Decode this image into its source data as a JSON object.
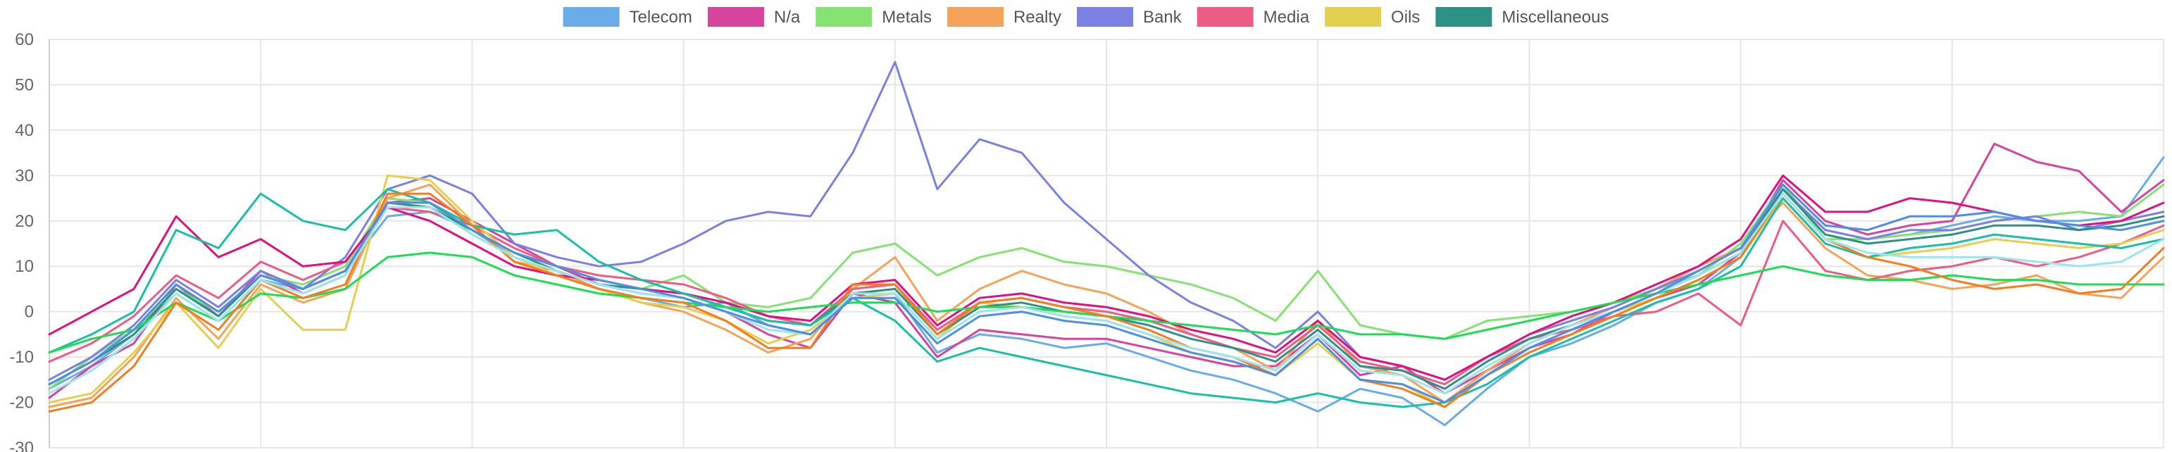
{
  "chart_data": {
    "type": "line",
    "title": "",
    "xlabel": "",
    "ylabel": "",
    "ylim": [
      -30,
      60
    ],
    "yticks": [
      60,
      50,
      40,
      30,
      20,
      10,
      0,
      -10,
      -20,
      -30
    ],
    "xlim": [
      0,
      100
    ],
    "grid": true,
    "legend_position": "top",
    "x": [
      0,
      2,
      4,
      6,
      8,
      10,
      12,
      14,
      16,
      18,
      20,
      22,
      24,
      26,
      28,
      30,
      32,
      34,
      36,
      38,
      40,
      42,
      44,
      46,
      48,
      50,
      52,
      54,
      56,
      58,
      60,
      62,
      64,
      66,
      68,
      70,
      72,
      74,
      76,
      78,
      80,
      82,
      84,
      86,
      88,
      90,
      92,
      94,
      96,
      98,
      100
    ],
    "series": [
      {
        "name": "Telecom",
        "color": "#6aace8",
        "legend": true,
        "values": [
          -17,
          -12,
          -5,
          4,
          -2,
          7,
          5,
          9,
          21,
          22,
          18,
          12,
          8,
          5,
          3,
          1,
          2,
          -3,
          -5,
          3,
          4,
          -9,
          -5,
          -6,
          -8,
          -7,
          -10,
          -13,
          -15,
          -18,
          -22,
          -17,
          -19,
          -25,
          -17,
          -10,
          -7,
          -3,
          2,
          5,
          12,
          27,
          18,
          16,
          17,
          19,
          21,
          20,
          20,
          21,
          34
        ]
      },
      {
        "name": "N/a",
        "color": "#d6449e",
        "legend": true,
        "values": [
          -19,
          -12,
          -7,
          6,
          -1,
          9,
          4,
          8,
          24,
          25,
          20,
          15,
          10,
          6,
          4,
          3,
          0,
          -5,
          -8,
          4,
          2,
          -10,
          -4,
          -5,
          -6,
          -6,
          -8,
          -10,
          -12,
          -12,
          -5,
          -14,
          -12,
          -18,
          -13,
          -8,
          -5,
          0,
          3,
          6,
          13,
          29,
          20,
          17,
          19,
          20,
          37,
          33,
          31,
          22,
          29
        ]
      },
      {
        "name": "Metals",
        "color": "#86e273",
        "legend": true,
        "values": [
          -17,
          -10,
          -4,
          5,
          0,
          8,
          6,
          10,
          25,
          24,
          17,
          12,
          9,
          6,
          5,
          8,
          2,
          1,
          3,
          13,
          15,
          8,
          12,
          14,
          11,
          10,
          8,
          6,
          3,
          -2,
          9,
          -3,
          -5,
          -6,
          -2,
          -1,
          0,
          2,
          5,
          8,
          15,
          28,
          16,
          16,
          17,
          18,
          20,
          21,
          22,
          21,
          28
        ]
      },
      {
        "name": "Realty",
        "color": "#f5a35a",
        "legend": true,
        "values": [
          -21,
          -19,
          -10,
          3,
          -6,
          6,
          2,
          5,
          25,
          28,
          19,
          11,
          9,
          5,
          2,
          0,
          -4,
          -9,
          -6,
          5,
          12,
          -2,
          5,
          9,
          6,
          4,
          0,
          -5,
          -8,
          -13,
          -2,
          -12,
          -14,
          -20,
          -13,
          -7,
          -3,
          1,
          5,
          10,
          14,
          24,
          14,
          8,
          7,
          5,
          6,
          8,
          4,
          3,
          12
        ]
      },
      {
        "name": "Bank",
        "color": "#7c80e2",
        "legend": true,
        "values": [
          -15,
          -10,
          -3,
          7,
          1,
          9,
          5,
          12,
          27,
          30,
          26,
          15,
          12,
          10,
          11,
          15,
          20,
          22,
          21,
          35,
          55,
          27,
          38,
          35,
          24,
          16,
          8,
          2,
          -2,
          -8,
          0,
          -10,
          -12,
          -15,
          -10,
          -5,
          -2,
          1,
          5,
          9,
          14,
          27,
          18,
          16,
          18,
          18,
          20,
          21,
          18,
          20,
          22
        ]
      },
      {
        "name": "Media",
        "color": "#ed5c84",
        "legend": true,
        "values": [
          -11,
          -7,
          -1,
          8,
          3,
          11,
          7,
          11,
          23,
          22,
          19,
          14,
          10,
          8,
          7,
          6,
          3,
          -1,
          -3,
          5,
          6,
          -4,
          2,
          3,
          1,
          0,
          -2,
          -5,
          -8,
          -10,
          -3,
          -11,
          -13,
          -16,
          -10,
          -6,
          -4,
          -1,
          0,
          4,
          -3,
          20,
          9,
          7,
          9,
          10,
          12,
          10,
          12,
          15,
          19
        ]
      },
      {
        "name": "Oils",
        "color": "#e4d04f",
        "legend": true,
        "values": [
          -20,
          -18,
          -9,
          2,
          -8,
          5,
          -4,
          -4,
          30,
          29,
          20,
          12,
          8,
          5,
          2,
          1,
          -2,
          -7,
          -4,
          3,
          4,
          -6,
          2,
          1,
          -1,
          -2,
          -5,
          -9,
          -11,
          -14,
          -7,
          -15,
          -16,
          -21,
          -14,
          -8,
          -4,
          0,
          3,
          7,
          12,
          25,
          15,
          12,
          13,
          14,
          16,
          15,
          14,
          15,
          18
        ]
      },
      {
        "name": "Miscellaneous",
        "color": "#2e9186",
        "legend": true,
        "values": [
          -16,
          -11,
          -5,
          5,
          -1,
          8,
          5,
          9,
          24,
          23,
          18,
          13,
          9,
          6,
          5,
          4,
          1,
          -2,
          -3,
          4,
          5,
          -5,
          1,
          2,
          0,
          -1,
          -3,
          -6,
          -8,
          -11,
          -4,
          -12,
          -13,
          -17,
          -11,
          -6,
          -3,
          0,
          4,
          8,
          13,
          27,
          17,
          15,
          16,
          17,
          19,
          19,
          18,
          19,
          21
        ]
      },
      {
        "name": "",
        "color": "#e0117f",
        "legend": false,
        "values": [
          -5,
          0,
          5,
          21,
          12,
          16,
          10,
          11,
          23,
          20,
          15,
          10,
          8,
          7,
          5,
          4,
          2,
          -1,
          -2,
          6,
          7,
          -3,
          3,
          4,
          2,
          1,
          -1,
          -4,
          -6,
          -9,
          -2,
          -10,
          -12,
          -15,
          -10,
          -5,
          -1,
          2,
          6,
          10,
          16,
          30,
          22,
          22,
          25,
          24,
          22,
          20,
          19,
          20,
          24
        ]
      },
      {
        "name": "",
        "color": "#1bbfa6",
        "legend": true,
        "values": [
          -9,
          -5,
          0,
          18,
          14,
          26,
          20,
          18,
          27,
          24,
          19,
          17,
          18,
          11,
          7,
          4,
          1,
          -2,
          -3,
          3,
          -2,
          -11,
          -8,
          -10,
          -12,
          -14,
          -16,
          -18,
          -19,
          -20,
          -18,
          -20,
          -21,
          -20,
          -16,
          -10,
          -6,
          -2,
          2,
          5,
          10,
          25,
          15,
          12,
          14,
          15,
          17,
          16,
          15,
          14,
          16
        ]
      },
      {
        "name": "",
        "color": "#1edd55",
        "legend": false,
        "values": [
          -9,
          -6,
          -4,
          2,
          -2,
          4,
          3,
          5,
          12,
          13,
          12,
          8,
          6,
          4,
          3,
          2,
          1,
          0,
          1,
          2,
          2,
          0,
          1,
          1,
          0,
          -1,
          -2,
          -3,
          -4,
          -5,
          -3,
          -5,
          -5,
          -6,
          -4,
          -2,
          0,
          2,
          4,
          6,
          8,
          10,
          8,
          7,
          7,
          8,
          7,
          7,
          6,
          6,
          6
        ]
      },
      {
        "name": "",
        "color": "#f37d1f",
        "legend": false,
        "values": [
          -22,
          -20,
          -12,
          2,
          -4,
          7,
          3,
          6,
          26,
          26,
          19,
          11,
          8,
          5,
          3,
          2,
          -2,
          -8,
          -8,
          6,
          6,
          -5,
          2,
          3,
          1,
          -1,
          -4,
          -8,
          -10,
          -14,
          -6,
          -15,
          -17,
          -21,
          -14,
          -9,
          -5,
          -1,
          3,
          7,
          12,
          26,
          16,
          12,
          10,
          7,
          5,
          6,
          4,
          5,
          14
        ]
      },
      {
        "name": "",
        "color": "#9ce4ef",
        "legend": false,
        "values": [
          -18,
          -13,
          -6,
          4,
          -2,
          7,
          4,
          8,
          23,
          23,
          17,
          12,
          9,
          6,
          4,
          3,
          0,
          -4,
          -5,
          4,
          4,
          -6,
          0,
          1,
          -1,
          -2,
          -5,
          -8,
          -10,
          -13,
          -5,
          -13,
          -14,
          -18,
          -12,
          -7,
          -3,
          0,
          4,
          8,
          13,
          26,
          16,
          13,
          12,
          12,
          12,
          11,
          10,
          11,
          16
        ]
      },
      {
        "name": "",
        "color": "#4d8fe0",
        "legend": false,
        "values": [
          -16,
          -11,
          -4,
          6,
          0,
          8,
          5,
          9,
          24,
          24,
          18,
          13,
          10,
          7,
          5,
          3,
          0,
          -3,
          -5,
          3,
          3,
          -7,
          -1,
          0,
          -2,
          -3,
          -6,
          -9,
          -11,
          -14,
          -6,
          -15,
          -16,
          -20,
          -14,
          -8,
          -4,
          0,
          4,
          9,
          14,
          28,
          19,
          18,
          21,
          21,
          22,
          20,
          19,
          18,
          20
        ]
      }
    ]
  }
}
